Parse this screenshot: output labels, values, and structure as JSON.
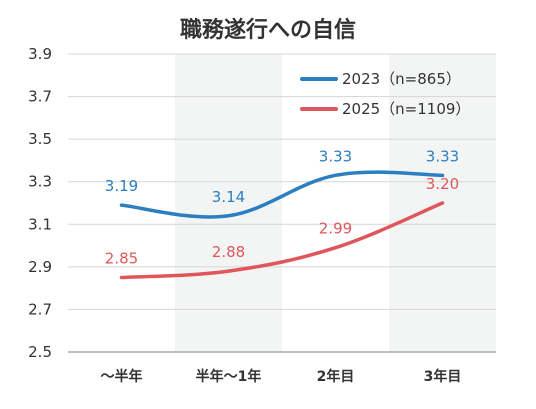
{
  "chart_data": {
    "type": "line",
    "title": "職務遂行への自信",
    "xlabel": "",
    "ylabel": "",
    "categories": [
      "～半年",
      "半年～1年",
      "2年目",
      "3年目"
    ],
    "ylim": [
      2.5,
      3.9
    ],
    "yticks": [
      "3.9",
      "3.7",
      "3.5",
      "3.3",
      "3.1",
      "2.9",
      "2.7",
      "2.5"
    ],
    "ytick_values": [
      3.9,
      3.7,
      3.5,
      3.3,
      3.1,
      2.9,
      2.7,
      2.5
    ],
    "grid": "horizontal",
    "legend_position": "top-right",
    "alternating_band_color": "#f3f5f4",
    "series": [
      {
        "name": "2023（n=865）",
        "values": [
          3.19,
          3.14,
          3.33,
          3.33
        ],
        "labels": [
          "3.19",
          "3.14",
          "3.33",
          "3.33"
        ],
        "color": "#2b7fc1"
      },
      {
        "name": "2025（n=1109）",
        "values": [
          2.85,
          2.88,
          2.99,
          3.2
        ],
        "labels": [
          "2.85",
          "2.88",
          "2.99",
          "3.20"
        ],
        "color": "#e0575b"
      }
    ]
  }
}
